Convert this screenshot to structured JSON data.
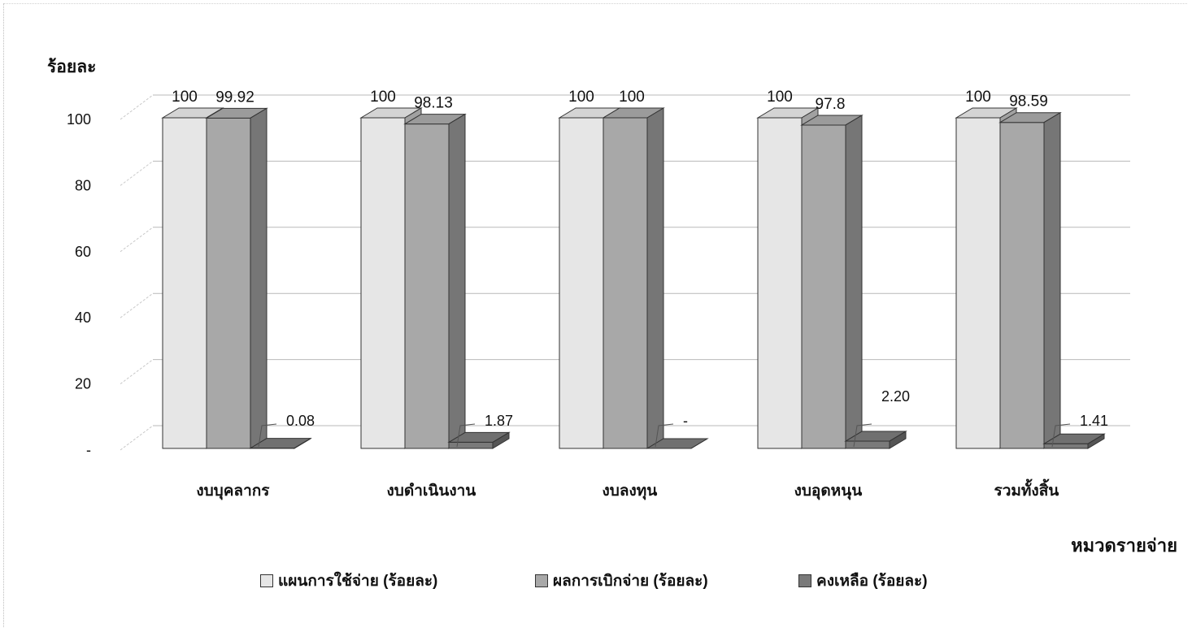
{
  "chart_data": {
    "type": "bar",
    "ylabel": "ร้อยละ",
    "xlabel": "หมวดรายจ่าย",
    "ylim": [
      0,
      100
    ],
    "yticks": [
      "-",
      "20",
      "40",
      "60",
      "80",
      "100"
    ],
    "categories": [
      "งบบุคลากร",
      "งบดำเนินงาน",
      "งบลงทุน",
      "งบอุดหนุน",
      "รวมทั้งสิ้น"
    ],
    "series": [
      {
        "name": "แผนการใช้จ่าย (ร้อยละ)",
        "values": [
          100,
          100,
          100,
          100,
          100
        ],
        "labels": [
          "100",
          "100",
          "100",
          "100",
          "100"
        ]
      },
      {
        "name": "ผลการเบิกจ่าย (ร้อยละ)",
        "values": [
          99.92,
          98.13,
          100,
          97.8,
          98.59
        ],
        "labels": [
          "99.92",
          "98.13",
          "100",
          "97.8",
          "98.59"
        ]
      },
      {
        "name": "คงเหลือ (ร้อยละ)",
        "values": [
          0.08,
          1.87,
          0,
          2.2,
          1.41
        ],
        "labels": [
          "0.08",
          "1.87",
          "-",
          "2.20",
          "1.41"
        ]
      }
    ],
    "colors": [
      "#e6e6e6",
      "#a8a8a8",
      "#7a7a7a"
    ],
    "grid": true,
    "legend_position": "bottom"
  }
}
